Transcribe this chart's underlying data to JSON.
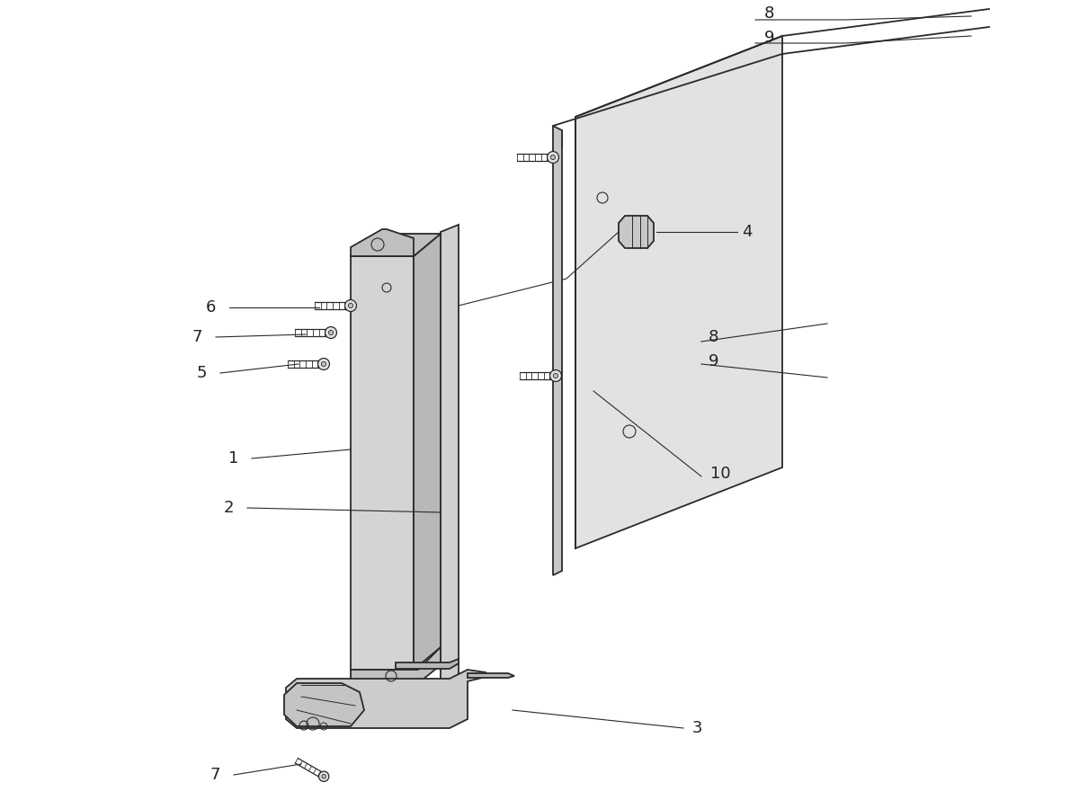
{
  "bg_color": "#ffffff",
  "line_color": "#2a2a2a",
  "label_color": "#222222",
  "label_fontsize": 13,
  "fill_panel": "#d4d4d4",
  "fill_panel_side": "#b8b8b8",
  "fill_panel_top": "#c0c0c0",
  "fill_pcb": "#d8d8d8",
  "fill_board": "#e2e2e2",
  "fill_clip": "#c8c8c8",
  "fill_ejector": "#cccccc",
  "fill_ejector_body": "#b8b8b8"
}
